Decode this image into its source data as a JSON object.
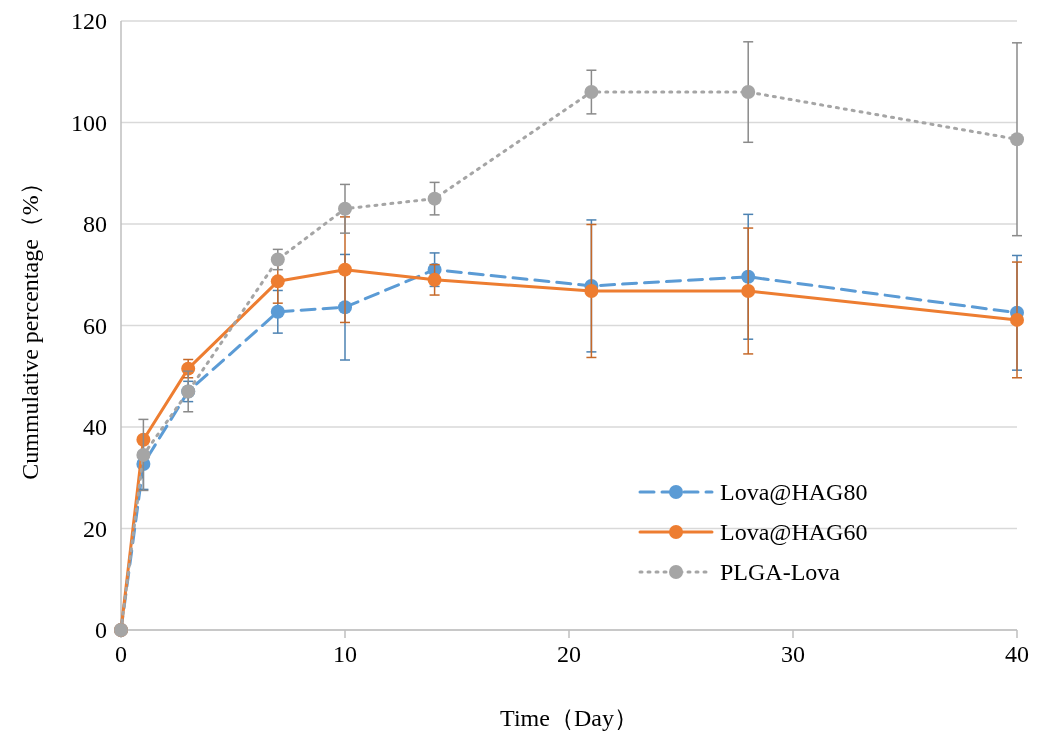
{
  "chart_data": {
    "type": "line",
    "xlabel": "Time（Day）",
    "ylabel": "Cummulative percentage（%）",
    "x": [
      0,
      1,
      3,
      7,
      10,
      14,
      21,
      28,
      40
    ],
    "xlim": [
      0,
      40
    ],
    "xticks": [
      0,
      10,
      20,
      30,
      40
    ],
    "ylim": [
      0,
      120
    ],
    "yticks": [
      0,
      20,
      40,
      60,
      80,
      100,
      120
    ],
    "grid": "y",
    "legend": "bottom right",
    "marker": "circle",
    "series": [
      {
        "name": "Lova@HAG80",
        "color": "#5b9bd5",
        "line_style": "dashed",
        "values": [
          0,
          32.7,
          47,
          62.7,
          63.6,
          71,
          67.8,
          69.6,
          62.5
        ],
        "errors": [
          null,
          5,
          2,
          4.2,
          10.4,
          3.3,
          13,
          12.3,
          11.3
        ]
      },
      {
        "name": "Lova@HAG60",
        "color": "#ed7d31",
        "line_style": "solid",
        "values": [
          0,
          37.5,
          51.5,
          68.7,
          71,
          69,
          66.8,
          66.8,
          61.1
        ],
        "errors": [
          null,
          null,
          1.8,
          4.3,
          10.4,
          3,
          13.1,
          12.4,
          11.4
        ]
      },
      {
        "name": "PLGA-Lova",
        "color": "#a5a5a5",
        "line_style": "dotted",
        "values": [
          0,
          34.5,
          47,
          73,
          83,
          85,
          106,
          106,
          96.7
        ],
        "errors": [
          null,
          7,
          4,
          2,
          4.8,
          3.2,
          4.3,
          9.9,
          19
        ]
      }
    ]
  }
}
